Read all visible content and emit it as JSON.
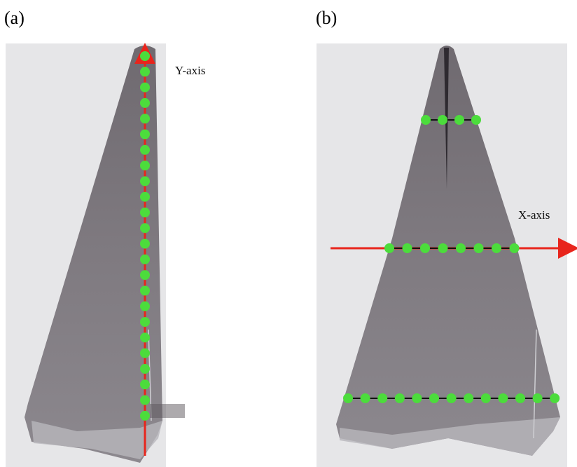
{
  "panels": [
    {
      "label": "(a)",
      "axis_label": "Y-axis"
    },
    {
      "label": "(b)",
      "axis_label": "X-axis"
    }
  ]
}
